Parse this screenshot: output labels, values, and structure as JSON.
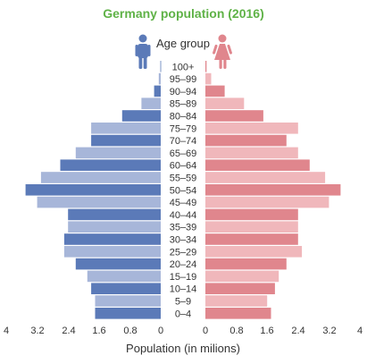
{
  "chart_data": {
    "type": "bar",
    "orientation": "horizontal-pyramid",
    "title": "Germany population (2016)",
    "category_header": "Age group",
    "xlabel": "Population (in milions)",
    "xlim": [
      0,
      4
    ],
    "ticks_left": [
      "4",
      "3.2",
      "2.4",
      "1.6",
      "0.8",
      "0"
    ],
    "ticks_right": [
      "0",
      "0.8",
      "1.6",
      "2.4",
      "3.2",
      "4"
    ],
    "categories": [
      "100+",
      "95–99",
      "90–94",
      "85–89",
      "80–84",
      "75–79",
      "70–74",
      "65–69",
      "60–64",
      "55–59",
      "50–54",
      "45–49",
      "40–44",
      "35–39",
      "30–34",
      "25–29",
      "20–24",
      "15–19",
      "10–14",
      "5–9",
      "0–4"
    ],
    "series": [
      {
        "name": "",
        "side": "left",
        "values": [
          0.01,
          0.05,
          0.17,
          0.5,
          1.0,
          1.8,
          1.8,
          2.2,
          2.6,
          3.1,
          3.5,
          3.2,
          2.4,
          2.4,
          2.5,
          2.5,
          2.2,
          1.9,
          1.8,
          1.7,
          1.7
        ],
        "colors": {
          "dark": "#5b7ab8",
          "light": "#a7b6d9"
        }
      },
      {
        "name": "",
        "side": "right",
        "values": [
          0.03,
          0.15,
          0.5,
          1.0,
          1.5,
          2.4,
          2.1,
          2.4,
          2.7,
          3.1,
          3.5,
          3.2,
          2.4,
          2.4,
          2.4,
          2.5,
          2.1,
          1.9,
          1.8,
          1.6,
          1.7
        ],
        "colors": {
          "dark": "#e0868d",
          "light": "#f0b7bb"
        }
      }
    ],
    "grid": false,
    "legend": "icons at top"
  }
}
